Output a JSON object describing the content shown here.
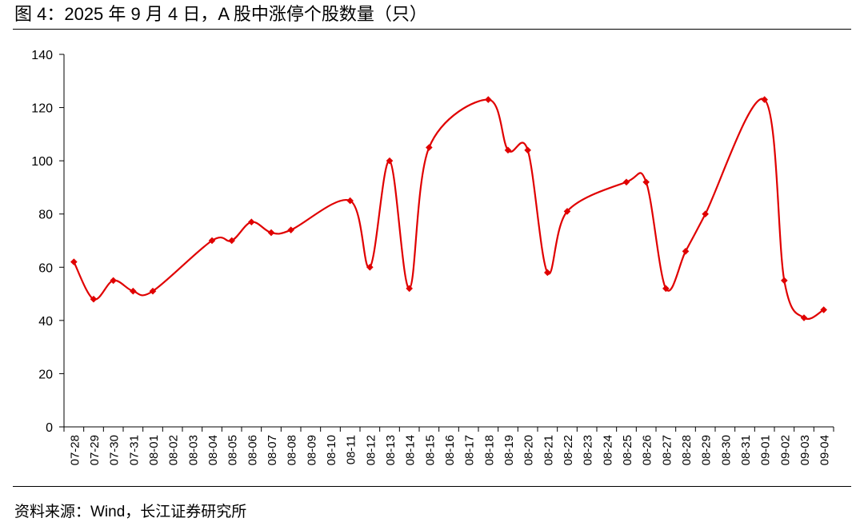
{
  "title": "图 4：2025 年 9 月 4 日，A 股中涨停个股数量（只）",
  "source": "资料来源：Wind，长江证券研究所",
  "colors": {
    "series": "#e00000",
    "axis": "#000000"
  },
  "chart_data": {
    "type": "line",
    "title": "图 4：2025 年 9 月 4 日，A 股中涨停个股数量（只）",
    "xlabel": "",
    "ylabel": "",
    "ylim": [
      0,
      140
    ],
    "yticks": [
      0,
      20,
      40,
      60,
      80,
      100,
      120,
      140
    ],
    "grid": false,
    "legend": "none",
    "smooth": true,
    "categories": [
      "07-28",
      "07-29",
      "07-30",
      "07-31",
      "08-01",
      "08-02",
      "08-03",
      "08-04",
      "08-05",
      "08-06",
      "08-07",
      "08-08",
      "08-09",
      "08-10",
      "08-11",
      "08-12",
      "08-13",
      "08-14",
      "08-15",
      "08-16",
      "08-17",
      "08-18",
      "08-19",
      "08-20",
      "08-21",
      "08-22",
      "08-23",
      "08-24",
      "08-25",
      "08-26",
      "08-27",
      "08-28",
      "08-29",
      "08-30",
      "08-31",
      "09-01",
      "09-02",
      "09-03",
      "09-04"
    ],
    "series": [
      {
        "name": "",
        "points": [
          {
            "x": "07-28",
            "y": 62
          },
          {
            "x": "07-29",
            "y": 48
          },
          {
            "x": "07-30",
            "y": 55
          },
          {
            "x": "07-31",
            "y": 51
          },
          {
            "x": "08-01",
            "y": 51
          },
          {
            "x": "08-04",
            "y": 70
          },
          {
            "x": "08-05",
            "y": 70
          },
          {
            "x": "08-06",
            "y": 77
          },
          {
            "x": "08-07",
            "y": 73
          },
          {
            "x": "08-08",
            "y": 74
          },
          {
            "x": "08-11",
            "y": 85
          },
          {
            "x": "08-12",
            "y": 60
          },
          {
            "x": "08-13",
            "y": 100
          },
          {
            "x": "08-14",
            "y": 52
          },
          {
            "x": "08-15",
            "y": 105
          },
          {
            "x": "08-18",
            "y": 123
          },
          {
            "x": "08-19",
            "y": 104
          },
          {
            "x": "08-20",
            "y": 104
          },
          {
            "x": "08-21",
            "y": 58
          },
          {
            "x": "08-22",
            "y": 81
          },
          {
            "x": "08-25",
            "y": 92
          },
          {
            "x": "08-26",
            "y": 92
          },
          {
            "x": "08-27",
            "y": 52
          },
          {
            "x": "08-28",
            "y": 66
          },
          {
            "x": "08-29",
            "y": 80
          },
          {
            "x": "09-01",
            "y": 123
          },
          {
            "x": "09-02",
            "y": 55
          },
          {
            "x": "09-03",
            "y": 41
          },
          {
            "x": "09-04",
            "y": 44
          }
        ]
      }
    ]
  }
}
